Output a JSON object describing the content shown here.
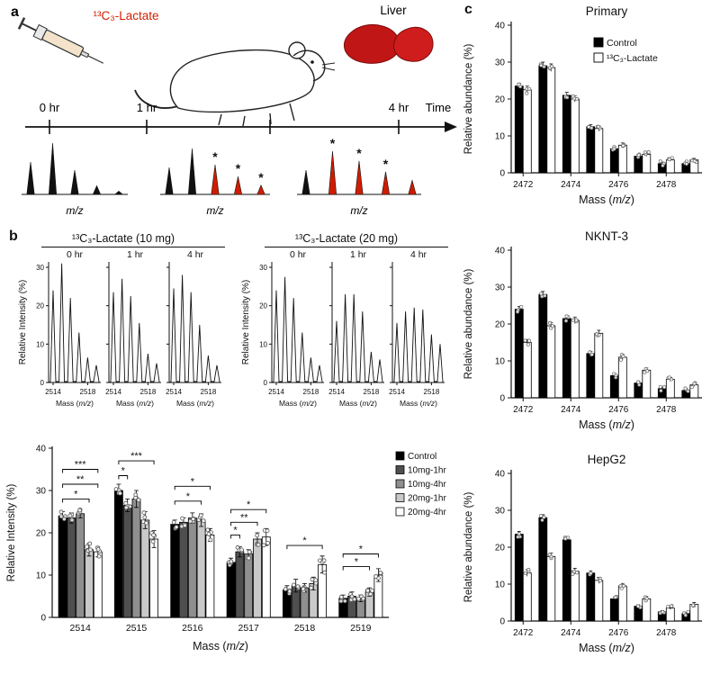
{
  "figure": {
    "background": "#ffffff"
  },
  "panel_a": {
    "label": "a",
    "injection_label": "¹³C₃-Lactate",
    "injection_color": "#d42000",
    "liver_label": "Liver",
    "liver_color": "#c01616",
    "time_label": "Time",
    "time_points": [
      "0 hr",
      "1 hr",
      "4 hr"
    ],
    "mz_label": "m/z",
    "star_symbol": "*",
    "schematic_spectra": [
      {
        "peaks": [
          {
            "h": 0.6,
            "red": false,
            "star": false
          },
          {
            "h": 0.95,
            "red": false,
            "star": false
          },
          {
            "h": 0.45,
            "red": false,
            "star": false
          },
          {
            "h": 0.16,
            "red": false,
            "star": false
          },
          {
            "h": 0.06,
            "red": false,
            "star": false
          }
        ]
      },
      {
        "peaks": [
          {
            "h": 0.5,
            "red": false,
            "star": false
          },
          {
            "h": 0.85,
            "red": false,
            "star": false
          },
          {
            "h": 0.55,
            "red": true,
            "star": true
          },
          {
            "h": 0.33,
            "red": true,
            "star": true
          },
          {
            "h": 0.17,
            "red": true,
            "star": true
          }
        ]
      },
      {
        "peaks": [
          {
            "h": 0.45,
            "red": false,
            "star": false
          },
          {
            "h": 0.8,
            "red": true,
            "star": true
          },
          {
            "h": 0.62,
            "red": true,
            "star": true
          },
          {
            "h": 0.42,
            "red": true,
            "star": true
          },
          {
            "h": 0.26,
            "red": true,
            "star": false
          }
        ]
      }
    ]
  },
  "panel_b": {
    "label": "b"
  },
  "panel_c": {
    "label": "c"
  },
  "chart_data": [
    {
      "id": "isotopologue-bars",
      "type": "bar",
      "title": "",
      "categories": [
        "2514",
        "2515",
        "2516",
        "2517",
        "2518",
        "2519"
      ],
      "series": [
        {
          "name": "Control",
          "color": "#000000",
          "values": [
            24,
            30,
            22,
            13,
            6.5,
            4.5
          ],
          "err": [
            1,
            1.5,
            1,
            1,
            1,
            0.8
          ]
        },
        {
          "name": "10mg-1hr",
          "color": "#4f4f4f",
          "values": [
            23.5,
            26.5,
            22.5,
            15.5,
            7.5,
            5
          ],
          "err": [
            1.2,
            1.5,
            1,
            1.2,
            1.5,
            1
          ]
        },
        {
          "name": "10mg-4hr",
          "color": "#8f8f8f",
          "values": [
            24.5,
            28,
            23.5,
            15,
            7,
            4.5
          ],
          "err": [
            1,
            2,
            1.2,
            1,
            1,
            0.8
          ]
        },
        {
          "name": "20mg-1hr",
          "color": "#c9c9c9",
          "values": [
            16,
            23,
            23,
            18.5,
            8,
            6
          ],
          "err": [
            1.5,
            2,
            1.5,
            1.5,
            1.5,
            1
          ]
        },
        {
          "name": "20mg-4hr",
          "color": "#ffffff",
          "values": [
            15.5,
            18.5,
            19.5,
            19,
            12.5,
            10
          ],
          "err": [
            1.2,
            2,
            1.5,
            2,
            2,
            1.5
          ]
        }
      ],
      "ylabel": "Relative Intensity (%)",
      "xlabel": "Mass (m/z)",
      "ylim": [
        0,
        40
      ],
      "yticks": [
        0,
        10,
        20,
        30,
        40
      ],
      "legend_position": "right",
      "brackets": [
        {
          "category": 0,
          "from": 0,
          "to": 3,
          "y": 28,
          "label": "*"
        },
        {
          "category": 0,
          "from": 0,
          "to": 4,
          "y": 31.5,
          "label": "**"
        },
        {
          "category": 0,
          "from": 0,
          "to": 4,
          "y": 35,
          "label": "***"
        },
        {
          "category": 1,
          "from": 0,
          "to": 1,
          "y": 33.5,
          "label": "*"
        },
        {
          "category": 1,
          "from": 0,
          "to": 4,
          "y": 37,
          "label": "***"
        },
        {
          "category": 2,
          "from": 0,
          "to": 3,
          "y": 27.5,
          "label": "*"
        },
        {
          "category": 2,
          "from": 0,
          "to": 4,
          "y": 31,
          "label": "*"
        },
        {
          "category": 3,
          "from": 0,
          "to": 1,
          "y": 19.5,
          "label": "*"
        },
        {
          "category": 3,
          "from": 0,
          "to": 3,
          "y": 22.5,
          "label": "**"
        },
        {
          "category": 3,
          "from": 0,
          "to": 4,
          "y": 25.5,
          "label": "*"
        },
        {
          "category": 4,
          "from": 0,
          "to": 4,
          "y": 17,
          "label": "*"
        },
        {
          "category": 5,
          "from": 0,
          "to": 3,
          "y": 12,
          "label": "*"
        },
        {
          "category": 5,
          "from": 0,
          "to": 4,
          "y": 15,
          "label": "*"
        }
      ]
    },
    {
      "id": "primary",
      "type": "bar",
      "title": "Primary",
      "categories": [
        "2472",
        "2473",
        "2474",
        "2475",
        "2476",
        "2477",
        "2478",
        "2479"
      ],
      "xtick_labels": [
        "2472",
        "2474",
        "2476",
        "2478"
      ],
      "series": [
        {
          "name": "Control",
          "color": "#000000",
          "values": [
            23.5,
            29,
            21,
            12.5,
            6.5,
            4.5,
            2.5,
            2.5
          ],
          "err": [
            0.8,
            1,
            0.8,
            0.6,
            0.5,
            0.5,
            0.4,
            0.4
          ]
        },
        {
          "name": "¹³C₃-Lactate",
          "color": "#ffffff",
          "values": [
            22.5,
            28.5,
            20,
            12,
            7.5,
            5,
            3.5,
            3.5
          ],
          "err": [
            1,
            1,
            0.8,
            0.7,
            0.6,
            0.5,
            0.4,
            0.4
          ]
        }
      ],
      "ylabel": "Relative abundance (%)",
      "xlabel": "Mass (m/z)",
      "ylim": [
        0,
        40
      ],
      "yticks": [
        0,
        10,
        20,
        30,
        40
      ],
      "show_legend": true
    },
    {
      "id": "nknt3",
      "type": "bar",
      "title": "NKNT-3",
      "categories": [
        "2472",
        "2473",
        "2474",
        "2475",
        "2476",
        "2477",
        "2478",
        "2479"
      ],
      "xtick_labels": [
        "2472",
        "2474",
        "2476",
        "2478"
      ],
      "series": [
        {
          "name": "Control",
          "color": "#000000",
          "values": [
            24,
            28,
            21.5,
            12,
            6,
            4,
            2.5,
            2
          ],
          "err": [
            0.8,
            0.8,
            0.8,
            0.6,
            0.5,
            0.4,
            0.3,
            0.3
          ]
        },
        {
          "name": "¹³C₃-Lactate",
          "color": "#ffffff",
          "values": [
            15,
            19.5,
            21,
            17.5,
            11,
            7.5,
            5,
            3.5
          ],
          "err": [
            0.8,
            0.9,
            0.9,
            0.8,
            0.7,
            0.6,
            0.5,
            0.4
          ]
        }
      ],
      "ylabel": "Relative abundance (%)",
      "xlabel": "Mass (m/z)",
      "ylim": [
        0,
        40
      ],
      "yticks": [
        0,
        10,
        20,
        30,
        40
      ],
      "show_legend": false
    },
    {
      "id": "hepg2",
      "type": "bar",
      "title": "HepG2",
      "categories": [
        "2472",
        "2473",
        "2474",
        "2475",
        "2476",
        "2477",
        "2478",
        "2479"
      ],
      "xtick_labels": [
        "2472",
        "2474",
        "2476",
        "2478"
      ],
      "series": [
        {
          "name": "Control",
          "color": "#000000",
          "values": [
            23.5,
            28,
            22,
            13,
            6,
            4,
            2.5,
            2
          ],
          "err": [
            0.8,
            0.8,
            0.8,
            0.6,
            0.5,
            0.4,
            0.3,
            0.3
          ]
        },
        {
          "name": "¹³C₃-Lactate",
          "color": "#ffffff",
          "values": [
            13,
            17.5,
            13.5,
            11,
            9.5,
            6,
            3.5,
            4.5
          ],
          "err": [
            0.9,
            0.9,
            0.8,
            0.8,
            0.7,
            0.6,
            0.4,
            0.5
          ]
        }
      ],
      "ylabel": "Relative abundance (%)",
      "xlabel": "Mass (m/z)",
      "ylim": [
        0,
        40
      ],
      "yticks": [
        0,
        10,
        20,
        30,
        40
      ],
      "show_legend": false
    },
    {
      "id": "spectra-10mg",
      "type": "line",
      "title": "¹³C₃-Lactate (10 mg)",
      "x": [
        2514,
        2515,
        2516,
        2517,
        2518,
        2519
      ],
      "series": [
        {
          "name": "0 hr",
          "values": [
            24,
            31,
            22,
            13,
            6.5,
            4.5
          ]
        },
        {
          "name": "1 hr",
          "values": [
            23.5,
            27,
            22.5,
            15.5,
            7.5,
            5
          ]
        },
        {
          "name": "4 hr",
          "values": [
            24.5,
            28,
            23.5,
            15,
            7,
            4.5
          ]
        }
      ],
      "ylabel": "Relative Intensity (%)",
      "xlabel": "Mass (m/z)",
      "ylim": [
        0,
        30
      ],
      "yticks": [
        0,
        10,
        20,
        30
      ],
      "xtick_labels": [
        "2514",
        "2518"
      ]
    },
    {
      "id": "spectra-20mg",
      "type": "line",
      "title": "¹³C₃-Lactate (20 mg)",
      "x": [
        2514,
        2515,
        2516,
        2517,
        2518,
        2519
      ],
      "series": [
        {
          "name": "0 hr",
          "values": [
            24,
            27.5,
            22,
            13,
            6.5,
            4.5
          ]
        },
        {
          "name": "1 hr",
          "values": [
            16,
            23,
            23,
            18.5,
            8,
            6
          ]
        },
        {
          "name": "4 hr",
          "values": [
            15.5,
            18.5,
            19.5,
            19,
            12.5,
            10
          ]
        }
      ],
      "ylabel": "Relative Intensity (%)",
      "xlabel": "Mass (m/z)",
      "ylim": [
        0,
        30
      ],
      "yticks": [
        0,
        10,
        20,
        30
      ],
      "xtick_labels": [
        "2514",
        "2518"
      ]
    }
  ]
}
